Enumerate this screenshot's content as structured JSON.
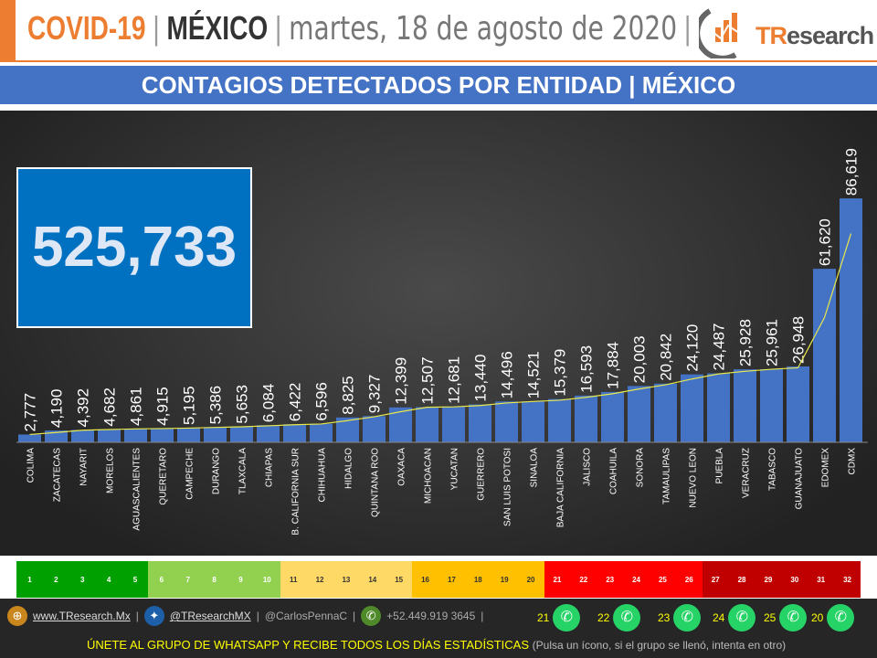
{
  "header": {
    "covid": "COVID-19",
    "sep": "|",
    "country": "MÉXICO",
    "date": "martes, 18 de agosto de 2020",
    "brand_t": "TR",
    "brand_rest": "esearch"
  },
  "title": "CONTAGIOS DETECTADOS POR ENTIDAD | MÉXICO",
  "total": "525,733",
  "chart_data": {
    "type": "bar",
    "title": "CONTAGIOS DETECTADOS POR ENTIDAD | MÉXICO",
    "categories": [
      "COLIMA",
      "ZACATECAS",
      "NAYARIT",
      "MORELOS",
      "AGUASCALIENTES",
      "QUERETARO",
      "CAMPECHE",
      "DURANGO",
      "TLAXCALA",
      "CHIAPAS",
      "B. CALIFORNIA SUR",
      "CHIHUAHUA",
      "HIDALGO",
      "QUINTANA ROO",
      "OAXACA",
      "MICHOACAN",
      "YUCATAN",
      "GUERRERO",
      "SAN LUIS POTOSI",
      "SINALOA",
      "BAJA CALIFORNIA",
      "JALISCO",
      "COAHUILA",
      "SONORA",
      "TAMAULIPAS",
      "NUEVO LEON",
      "PUEBLA",
      "VERACRUZ",
      "TABASCO",
      "GUANAJUATO",
      "EDOMEX",
      "CDMX"
    ],
    "values": [
      2777,
      4190,
      4392,
      4682,
      4861,
      4915,
      5195,
      5386,
      5653,
      6084,
      6422,
      6596,
      8825,
      9327,
      12399,
      12507,
      12681,
      13440,
      14496,
      14521,
      15379,
      16593,
      17884,
      20003,
      20842,
      24120,
      24487,
      25928,
      25961,
      26948,
      61620,
      86619
    ],
    "labels": [
      "2,777",
      "4,190",
      "4,392",
      "4,682",
      "4,861",
      "4,915",
      "5,195",
      "5,386",
      "5,653",
      "6,084",
      "6,422",
      "6,596",
      "8,825",
      "9,327",
      "12,399",
      "12,507",
      "12,681",
      "13,440",
      "14,496",
      "14,521",
      "15,379",
      "16,593",
      "17,884",
      "20,003",
      "20,842",
      "24,120",
      "24,487",
      "25,928",
      "25,961",
      "26,948",
      "61,620",
      "86,619"
    ],
    "bar_color": "#4472c4",
    "trendline_color": "#e8e84a",
    "grid": false,
    "legend": "none"
  },
  "scale": {
    "labels": [
      "1",
      "2",
      "3",
      "4",
      "5",
      "6",
      "7",
      "8",
      "9",
      "10",
      "11",
      "12",
      "13",
      "14",
      "15",
      "16",
      "17",
      "18",
      "19",
      "20",
      "21",
      "22",
      "23",
      "24",
      "25",
      "26",
      "27",
      "28",
      "29",
      "30",
      "31",
      "32"
    ],
    "colors": [
      "#00a000",
      "#00a000",
      "#00a000",
      "#00a000",
      "#00a000",
      "#92d050",
      "#92d050",
      "#92d050",
      "#92d050",
      "#92d050",
      "#ffd966",
      "#ffd966",
      "#ffd966",
      "#ffd966",
      "#ffd966",
      "#ffc000",
      "#ffc000",
      "#ffc000",
      "#ffc000",
      "#ffc000",
      "#ff0000",
      "#ff0000",
      "#ff0000",
      "#ff0000",
      "#ff0000",
      "#ff0000",
      "#c00000",
      "#c00000",
      "#c00000",
      "#c00000",
      "#c00000",
      "#c00000"
    ]
  },
  "footer": {
    "web": "www.TResearch.Mx",
    "twitter": "@TResearchMX",
    "handle": "@CarlosPennaC",
    "phone": "+52.449.919 3645",
    "sep": "|",
    "groups": [
      "21",
      "22",
      "23",
      "24",
      "25",
      "20"
    ],
    "join": "ÚNETE AL GRUPO DE WHATSAPP Y RECIBE TODOS LOS DÍAS ESTADÍSTICAS",
    "join_note": "(Pulsa un ícono, si el grupo se llenó, intenta en otro)"
  }
}
